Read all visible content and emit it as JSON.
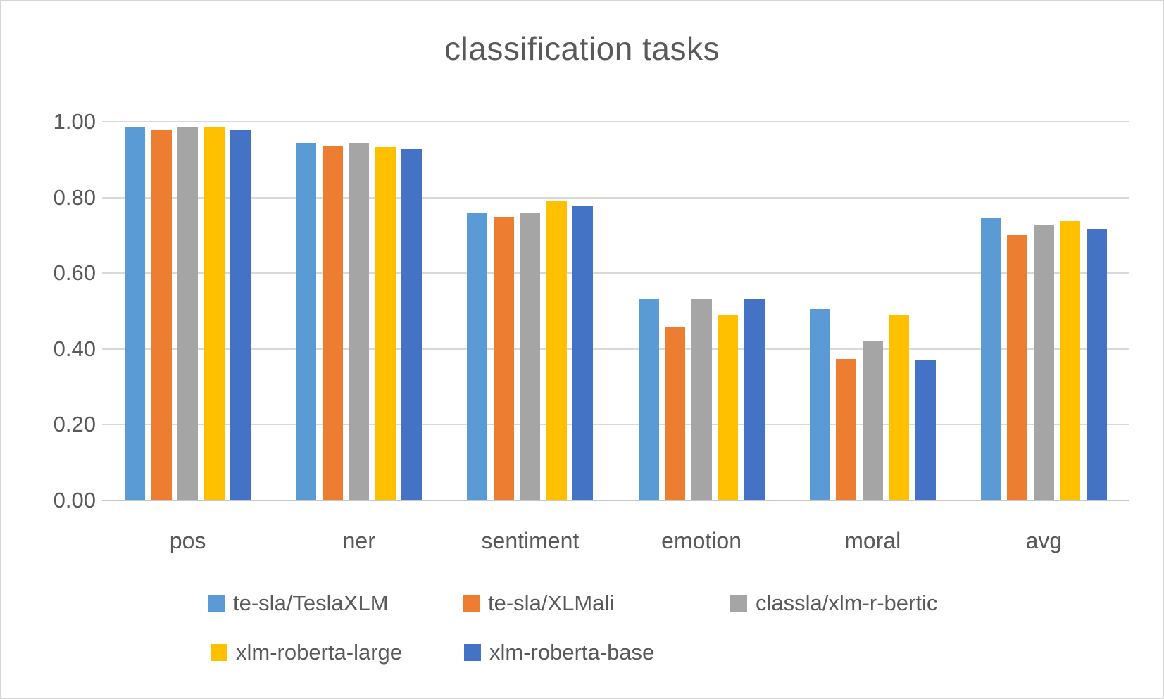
{
  "chart_data": {
    "type": "bar",
    "title": "classification tasks",
    "categories": [
      "pos",
      "ner",
      "sentiment",
      "emotion",
      "moral",
      "avg"
    ],
    "series": [
      {
        "name": "te-sla/TeslaXLM",
        "color": "#5B9BD5",
        "values": [
          0.985,
          0.945,
          0.761,
          0.531,
          0.505,
          0.745
        ]
      },
      {
        "name": "te-sla/XLMali",
        "color": "#ED7D31",
        "values": [
          0.98,
          0.935,
          0.75,
          0.46,
          0.373,
          0.7
        ]
      },
      {
        "name": "classla/xlm-r-bertic",
        "color": "#A5A5A5",
        "values": [
          0.985,
          0.945,
          0.761,
          0.531,
          0.421,
          0.729
        ]
      },
      {
        "name": "xlm-roberta-large",
        "color": "#FFC000",
        "values": [
          0.985,
          0.933,
          0.791,
          0.49,
          0.489,
          0.738
        ]
      },
      {
        "name": "xlm-roberta-base",
        "color": "#4472C4",
        "values": [
          0.98,
          0.93,
          0.779,
          0.531,
          0.37,
          0.718
        ]
      }
    ],
    "ylim": [
      0,
      1
    ],
    "yticks": {
      "values": [
        0,
        0.2,
        0.4,
        0.6,
        0.8,
        1.0
      ],
      "labels": [
        "0.00",
        "0.20",
        "0.40",
        "0.60",
        "0.80",
        "1.00"
      ]
    },
    "grid": true,
    "legend_position": "bottom",
    "legend_rows": [
      [
        0,
        1,
        2
      ],
      [
        3,
        4
      ]
    ]
  },
  "colors": {
    "text": "#595959",
    "gridline": "#D9D9D9",
    "axis_line": "#C6C6C6",
    "background": "#FFFFFF",
    "border": "#D6D6D6"
  }
}
